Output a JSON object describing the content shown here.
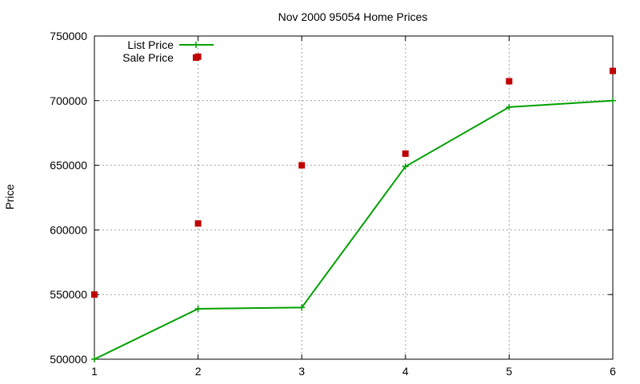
{
  "chart_data": {
    "type": "line",
    "title": "Nov 2000 95054 Home Prices",
    "xlabel": "",
    "ylabel": "Price",
    "xlim": [
      1,
      6
    ],
    "ylim": [
      500000,
      750000
    ],
    "x_ticks": [
      "1",
      "2",
      "3",
      "4",
      "5",
      "6"
    ],
    "y_ticks": [
      "500000",
      "550000",
      "600000",
      "650000",
      "700000",
      "750000"
    ],
    "grid": true,
    "legend_position": "top-left",
    "series": [
      {
        "name": "List Price",
        "style": "line+points",
        "color": "#00a000",
        "points": [
          {
            "x": 1,
            "y": 500000
          },
          {
            "x": 2,
            "y": 539000
          },
          {
            "x": 3,
            "y": 540000
          },
          {
            "x": 4,
            "y": 649000
          },
          {
            "x": 5,
            "y": 695000
          },
          {
            "x": 6,
            "y": 700000
          }
        ]
      },
      {
        "name": "Sale Price",
        "style": "points",
        "color": "#c00000",
        "points": [
          {
            "x": 1,
            "y": 550000
          },
          {
            "x": 2,
            "y": 605000
          },
          {
            "x": 2,
            "y": 734000
          },
          {
            "x": 3,
            "y": 650000
          },
          {
            "x": 4,
            "y": 659000
          },
          {
            "x": 5,
            "y": 715000
          },
          {
            "x": 6,
            "y": 723000
          }
        ]
      }
    ]
  }
}
